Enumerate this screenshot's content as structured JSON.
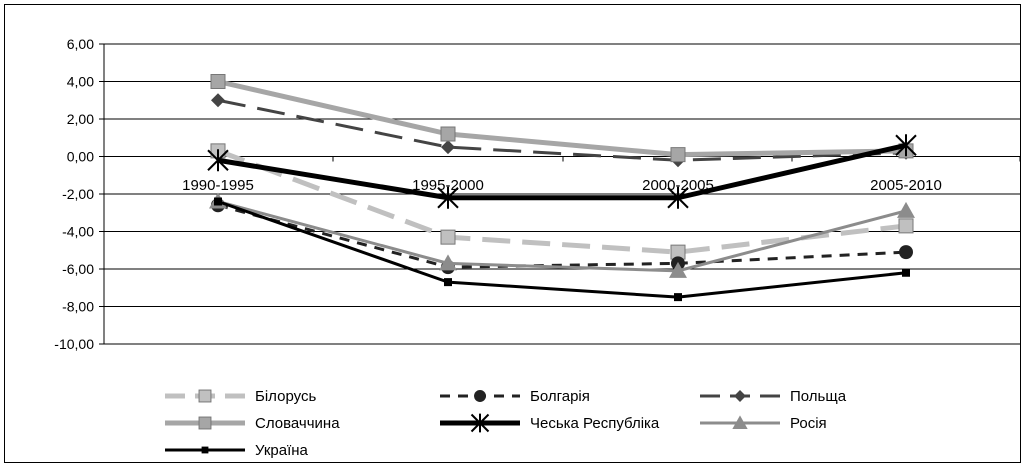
{
  "chart_data": {
    "type": "line",
    "categories": [
      "1990-1995",
      "1995-2000",
      "2000-2005",
      "2005-2010"
    ],
    "ylim": [
      -10,
      6
    ],
    "yticks": [
      "6,00",
      "4,00",
      "2,00",
      "0,00",
      "-2,00",
      "-4,00",
      "-6,00",
      "-8,00",
      "-10,00"
    ],
    "grid": true,
    "legend_position": "bottom",
    "series": [
      {
        "name": "Білорусь",
        "values": [
          0.3,
          -4.3,
          -5.1,
          -3.7
        ],
        "color": "#c0c0c0",
        "dash": "long-dash",
        "marker": "square",
        "width": 5
      },
      {
        "name": "Болгарія",
        "values": [
          -2.6,
          -5.9,
          -5.7,
          -5.1
        ],
        "color": "#222222",
        "dash": "short-dash",
        "marker": "circle",
        "width": 3
      },
      {
        "name": "Польща",
        "values": [
          3.0,
          0.5,
          -0.2,
          0.2
        ],
        "color": "#444444",
        "dash": "long-dash",
        "marker": "diamond",
        "width": 3
      },
      {
        "name": "Словаччина",
        "values": [
          4.0,
          1.2,
          0.1,
          0.3
        ],
        "color": "#a6a6a6",
        "dash": "solid",
        "marker": "square",
        "width": 5
      },
      {
        "name": "Чеська Республіка",
        "values": [
          -0.2,
          -2.2,
          -2.2,
          0.6
        ],
        "color": "#000000",
        "dash": "solid",
        "marker": "asterisk",
        "width": 5
      },
      {
        "name": "Росія",
        "values": [
          -2.4,
          -5.7,
          -6.1,
          -2.9
        ],
        "color": "#8c8c8c",
        "dash": "solid",
        "marker": "triangle",
        "width": 3
      },
      {
        "name": "Україна",
        "values": [
          -2.4,
          -6.7,
          -7.5,
          -6.2
        ],
        "color": "#000000",
        "dash": "solid",
        "marker": "small-square",
        "width": 3
      }
    ]
  }
}
